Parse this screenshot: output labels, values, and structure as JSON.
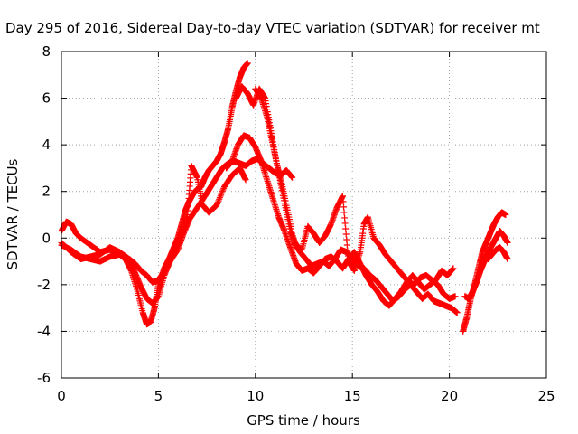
{
  "chart_data": {
    "type": "scatter",
    "title": "Day 295 of 2016, Sidereal Day-to-day VTEC variation (SDTVAR) for receiver mt",
    "xlabel": "GPS time / hours",
    "ylabel": "SDTVAR / TECUs",
    "xlim": [
      0,
      25
    ],
    "ylim": [
      -6,
      8
    ],
    "xticks": [
      0,
      5,
      10,
      15,
      20,
      25
    ],
    "yticks": [
      -6,
      -4,
      -2,
      0,
      2,
      4,
      6,
      8
    ],
    "grid": true,
    "marker": "+",
    "color": "#ff0000",
    "series": [
      {
        "x": [
          0.0,
          0.25,
          0.5,
          0.75,
          1.0,
          1.5,
          2.0,
          2.5,
          3.0,
          3.3,
          3.6,
          3.9,
          4.2,
          4.4,
          4.6,
          4.8,
          5.0,
          5.3,
          5.6,
          5.8,
          6.0,
          6.2,
          6.4,
          6.6,
          6.8,
          7.0,
          7.2,
          7.4,
          7.6,
          7.8,
          8.0,
          8.2,
          8.4,
          8.6,
          8.8,
          9.0,
          9.2,
          9.4,
          9.6
        ],
        "values": [
          0.3,
          0.7,
          0.6,
          0.2,
          0.0,
          -0.3,
          -0.6,
          -0.5,
          -0.7,
          -0.9,
          -1.4,
          -2.2,
          -3.2,
          -3.7,
          -3.6,
          -3.0,
          -2.0,
          -1.3,
          -0.8,
          -0.4,
          0.0,
          0.6,
          1.2,
          1.6,
          1.9,
          2.1,
          2.2,
          2.6,
          2.9,
          3.1,
          3.3,
          3.6,
          4.1,
          4.7,
          5.6,
          6.3,
          6.9,
          7.3,
          7.5
        ]
      },
      {
        "x": [
          0.0,
          0.5,
          1.0,
          1.5,
          2.0,
          2.5,
          3.0,
          3.5,
          3.8,
          4.1,
          4.4,
          4.7,
          5.0,
          5.3,
          5.6,
          6.0,
          6.3,
          6.6,
          7.0,
          7.4,
          7.7,
          8.0,
          8.3,
          8.6,
          8.9,
          9.2,
          9.5,
          9.8,
          10.1,
          10.4,
          10.7,
          11.0,
          11.3,
          11.6,
          11.9
        ],
        "values": [
          -0.3,
          -0.5,
          -0.8,
          -0.9,
          -1.0,
          -0.8,
          -0.7,
          -1.0,
          -1.5,
          -2.1,
          -2.6,
          -2.8,
          -2.5,
          -1.6,
          -1.0,
          -0.5,
          0.2,
          0.8,
          1.3,
          1.8,
          2.2,
          2.6,
          3.0,
          3.2,
          3.3,
          3.2,
          3.1,
          3.3,
          3.4,
          3.2,
          3.0,
          2.8,
          2.7,
          2.9,
          2.6
        ]
      },
      {
        "x": [
          0.0,
          0.5,
          1.0,
          1.5,
          2.0,
          2.5,
          3.0,
          3.5,
          3.8,
          4.1,
          4.4,
          4.7,
          5.0,
          5.4,
          5.8,
          6.2,
          6.5,
          6.7,
          7.0,
          7.3,
          7.6,
          8.0,
          8.4,
          8.8,
          9.2,
          9.5
        ],
        "values": [
          -0.2,
          -0.6,
          -0.9,
          -0.8,
          -0.7,
          -0.4,
          -0.6,
          -0.9,
          -1.1,
          -1.4,
          -1.6,
          -1.9,
          -1.8,
          -1.3,
          -0.7,
          0.1,
          1.0,
          3.1,
          2.6,
          1.4,
          1.1,
          1.4,
          2.2,
          2.7,
          3.0,
          2.5
        ]
      },
      {
        "x": [
          9.0,
          9.3,
          9.6,
          9.9,
          10.2,
          10.5,
          10.8,
          11.1,
          11.4,
          11.7,
          12.0,
          12.3,
          12.6,
          12.9,
          13.2,
          13.5,
          13.8,
          14.1,
          14.4,
          14.7,
          15.0,
          15.3,
          15.6,
          15.9,
          16.2,
          16.5,
          16.8,
          17.1,
          17.4,
          17.7,
          18.0,
          18.3,
          18.6,
          18.9,
          19.2,
          19.5,
          19.8,
          20.1,
          20.4
        ],
        "values": [
          6.0,
          6.5,
          6.2,
          5.7,
          6.4,
          6.0,
          4.6,
          3.2,
          2.2,
          1.0,
          -0.2,
          -0.6,
          -0.9,
          -1.2,
          -1.1,
          -1.0,
          -1.2,
          -0.9,
          -0.5,
          -0.6,
          -0.9,
          -1.2,
          -1.3,
          -1.6,
          -1.8,
          -2.1,
          -2.4,
          -2.7,
          -2.5,
          -2.2,
          -2.0,
          -2.3,
          -2.6,
          -2.4,
          -2.7,
          -2.8,
          -2.9,
          -3.0,
          -3.2
        ]
      },
      {
        "x": [
          10.0,
          10.3,
          10.6,
          10.9,
          11.2,
          11.5,
          11.8,
          12.1,
          12.4,
          12.7,
          13.0,
          13.3,
          13.6,
          13.9,
          14.2,
          14.5,
          14.8,
          15.1,
          15.4,
          15.6,
          15.8,
          16.1,
          16.4,
          16.7,
          17.0,
          17.3,
          17.6,
          17.9,
          18.2,
          18.5,
          18.8,
          19.1,
          19.4,
          19.7,
          20.0,
          20.3
        ],
        "values": [
          6.4,
          6.0,
          5.2,
          4.0,
          2.8,
          1.5,
          0.3,
          -0.3,
          -0.5,
          0.5,
          0.2,
          -0.2,
          0.1,
          0.6,
          1.3,
          1.8,
          -1.0,
          -1.4,
          -0.6,
          0.6,
          0.9,
          0.0,
          -0.3,
          -0.7,
          -1.0,
          -1.3,
          -1.6,
          -1.9,
          -2.0,
          -1.7,
          -1.6,
          -1.8,
          -2.0,
          -2.4,
          -2.6,
          -2.5
        ]
      },
      {
        "x": [
          8.5,
          8.8,
          9.1,
          9.4,
          9.7,
          10.0,
          10.3,
          10.6,
          10.9,
          11.2,
          11.5,
          11.8,
          12.1,
          12.4,
          12.7,
          13.0,
          13.3,
          13.6,
          13.9,
          14.2,
          14.5,
          14.8,
          15.1,
          15.4,
          15.7,
          16.0,
          16.3,
          16.6,
          16.9,
          17.2,
          17.5,
          17.8,
          18.1,
          18.4,
          18.7,
          19.0,
          19.3,
          19.6,
          19.9,
          20.2
        ],
        "values": [
          3.0,
          3.3,
          4.0,
          4.4,
          4.3,
          3.9,
          3.3,
          2.5,
          1.7,
          0.9,
          0.3,
          -0.4,
          -1.1,
          -1.4,
          -1.3,
          -1.5,
          -1.2,
          -0.9,
          -0.8,
          -1.0,
          -1.3,
          -0.9,
          -0.6,
          -1.1,
          -1.6,
          -2.0,
          -2.3,
          -2.7,
          -2.9,
          -2.6,
          -2.3,
          -1.9,
          -1.6,
          -1.9,
          -2.2,
          -2.0,
          -1.8,
          -1.4,
          -1.6,
          -1.3
        ]
      },
      {
        "x": [
          20.7,
          20.9,
          21.1,
          21.3,
          21.5,
          21.7,
          21.9,
          22.1,
          22.3,
          22.5,
          22.7,
          22.9
        ],
        "values": [
          -4.0,
          -3.4,
          -2.6,
          -2.0,
          -1.3,
          -0.6,
          -0.2,
          0.2,
          0.6,
          0.9,
          1.1,
          1.0
        ]
      },
      {
        "x": [
          20.8,
          21.0,
          21.2,
          21.4,
          21.6,
          21.8,
          22.0,
          22.2,
          22.4,
          22.6,
          22.8,
          23.0
        ],
        "values": [
          -2.5,
          -2.6,
          -2.3,
          -1.9,
          -1.4,
          -1.0,
          -0.6,
          -0.3,
          0.0,
          0.3,
          0.1,
          -0.2
        ]
      },
      {
        "x": [
          21.6,
          21.8,
          22.0,
          22.2,
          22.4,
          22.6,
          22.8,
          23.0
        ],
        "values": [
          -1.0,
          -0.8,
          -0.9,
          -0.7,
          -0.5,
          -0.4,
          -0.6,
          -0.9
        ]
      }
    ]
  }
}
